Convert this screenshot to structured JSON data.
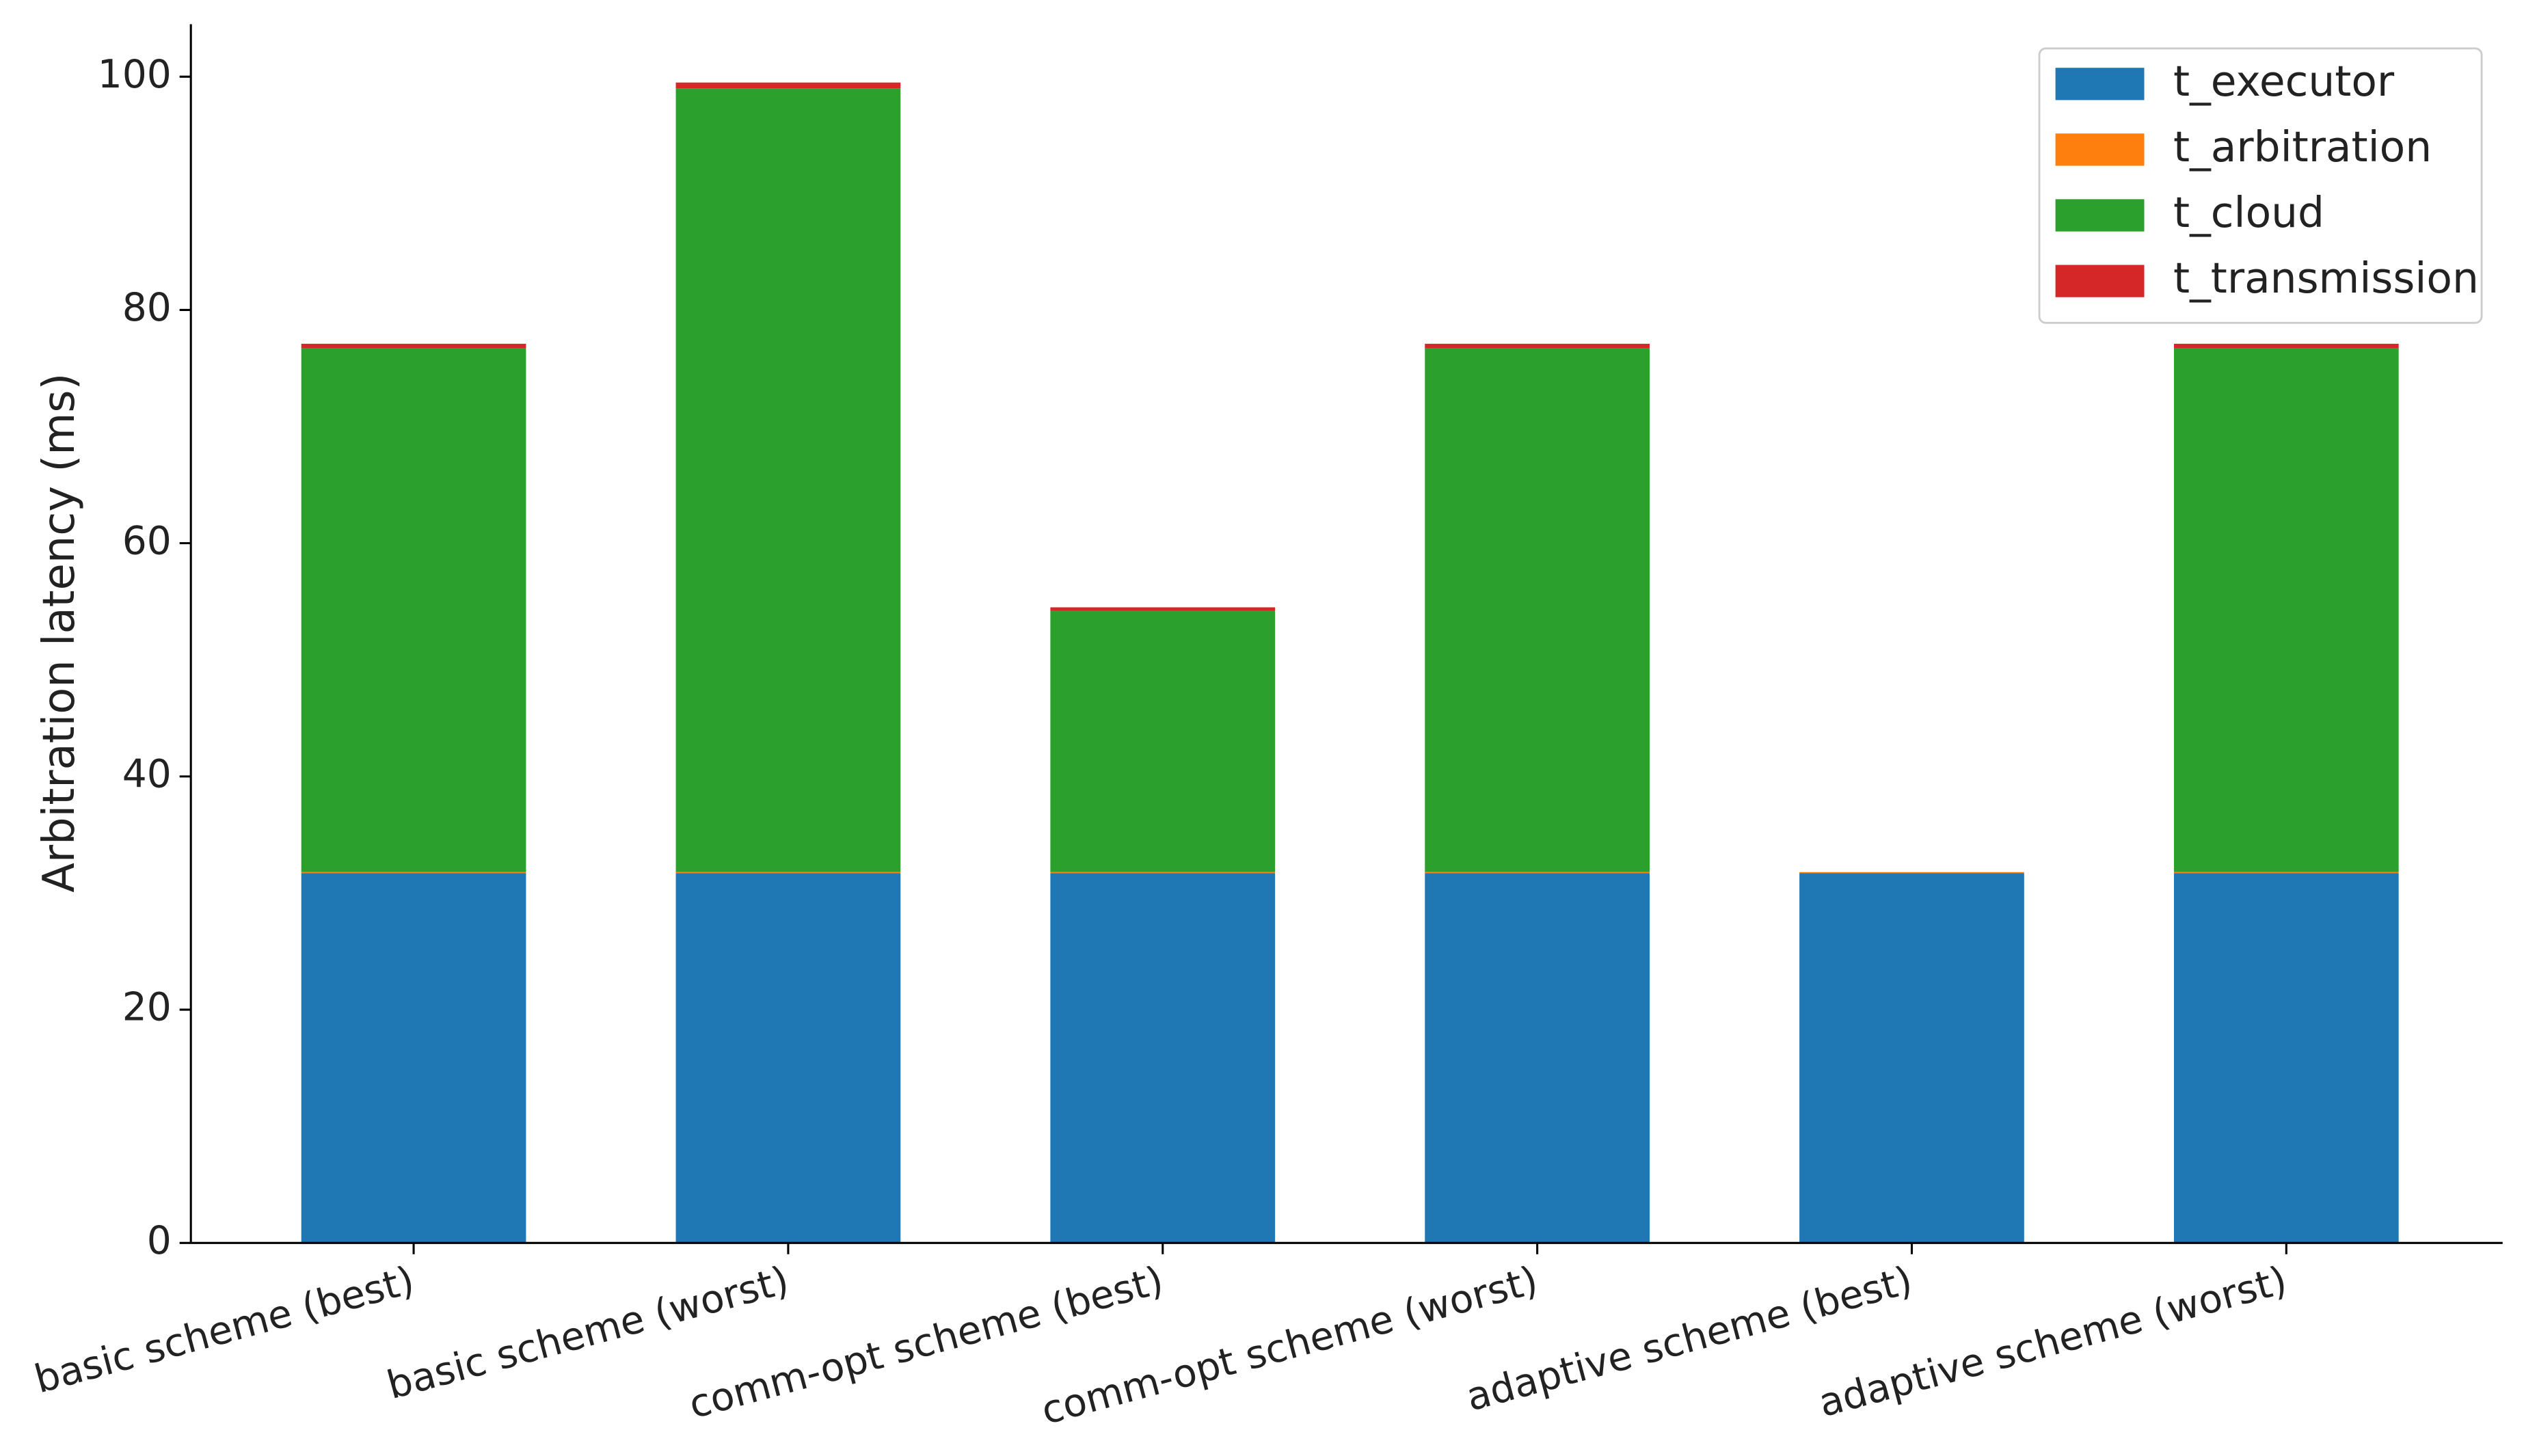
{
  "chart_data": {
    "type": "stacked_bar",
    "y_label": "Arbitration latency (ms)",
    "categories": [
      "basic scheme (best)",
      "basic scheme (worst)",
      "comm-opt scheme (best)",
      "comm-opt scheme (worst)",
      "adaptive scheme (best)",
      "adaptive scheme (worst)"
    ],
    "series": [
      {
        "name": "t_executor",
        "color": "#1f77b4",
        "values": [
          31.7,
          31.7,
          31.7,
          31.7,
          31.7,
          31.7
        ]
      },
      {
        "name": "t_arbitration",
        "color": "#ff7f0e",
        "values": [
          0.1,
          0.1,
          0.1,
          0.1,
          0.1,
          0.1
        ]
      },
      {
        "name": "t_cloud",
        "color": "#2ca02c",
        "values": [
          44.9,
          67.2,
          22.4,
          44.9,
          0,
          44.9
        ]
      },
      {
        "name": "t_transmission",
        "color": "#d62728",
        "values": [
          0.4,
          0.5,
          0.3,
          0.4,
          0,
          0.4
        ]
      }
    ],
    "ylim": [
      0,
      104.5
    ],
    "yticks": [
      0,
      20,
      40,
      60,
      80,
      100
    ],
    "legend": "upper right",
    "grid": false
  }
}
